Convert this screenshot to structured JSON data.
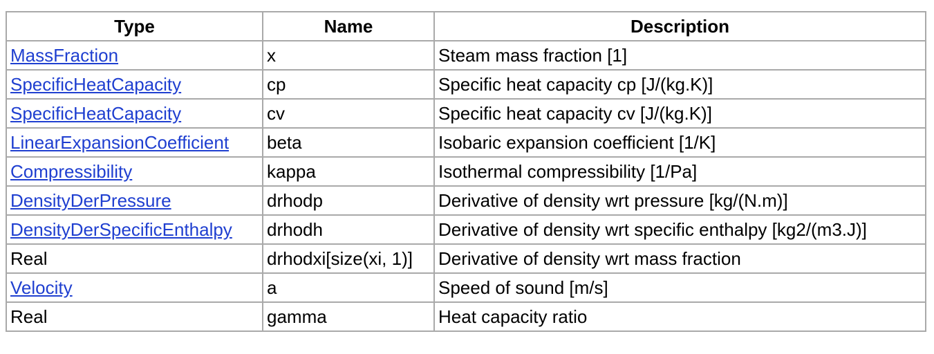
{
  "table": {
    "headers": {
      "type": "Type",
      "name": "Name",
      "description": "Description"
    },
    "rows": [
      {
        "type": "MassFraction",
        "type_is_link": true,
        "name": "x",
        "description": "Steam mass fraction [1]"
      },
      {
        "type": "SpecificHeatCapacity",
        "type_is_link": true,
        "name": "cp",
        "description": "Specific heat capacity cp [J/(kg.K)]"
      },
      {
        "type": "SpecificHeatCapacity",
        "type_is_link": true,
        "name": "cv",
        "description": "Specific heat capacity cv [J/(kg.K)]"
      },
      {
        "type": "LinearExpansionCoefficient",
        "type_is_link": true,
        "name": "beta",
        "description": "Isobaric expansion coefficient [1/K]"
      },
      {
        "type": "Compressibility",
        "type_is_link": true,
        "name": "kappa",
        "description": "Isothermal compressibility [1/Pa]"
      },
      {
        "type": "DensityDerPressure",
        "type_is_link": true,
        "name": "drhodp",
        "description": "Derivative of density wrt pressure [kg/(N.m)]"
      },
      {
        "type": "DensityDerSpecificEnthalpy",
        "type_is_link": true,
        "name": "drhodh",
        "description": "Derivative of density wrt specific enthalpy [kg2/(m3.J)]"
      },
      {
        "type": "Real",
        "type_is_link": false,
        "name": "drhodxi[size(xi, 1)]",
        "description": "Derivative of density wrt mass fraction"
      },
      {
        "type": "Velocity",
        "type_is_link": true,
        "name": "a",
        "description": "Speed of sound [m/s]"
      },
      {
        "type": "Real",
        "type_is_link": false,
        "name": "gamma",
        "description": "Heat capacity ratio"
      }
    ]
  },
  "colors": {
    "link": "#1f3fd0",
    "border": "#a9a9a9"
  }
}
